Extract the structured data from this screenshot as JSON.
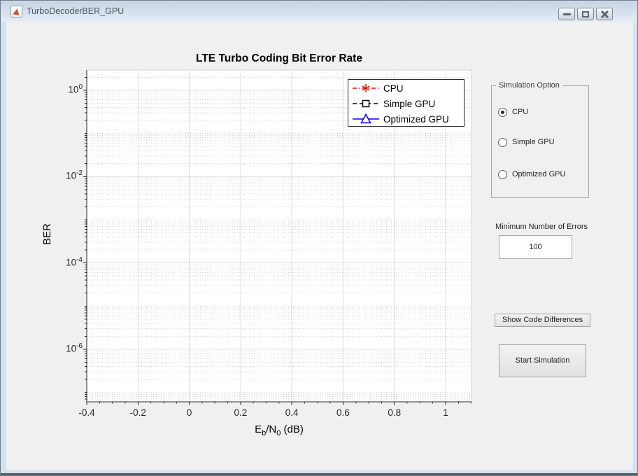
{
  "window": {
    "title": "TurboDecoderBER_GPU",
    "icon": "matlab-logo",
    "buttons": [
      "minimize",
      "maximize",
      "close"
    ]
  },
  "chart": {
    "title": "LTE Turbo Coding Bit Error Rate",
    "ylabel": "BER",
    "xlabel_segments": [
      {
        "text": "E"
      },
      {
        "text": "b",
        "sub": true
      },
      {
        "text": "/N"
      },
      {
        "text": "0",
        "sub": true
      },
      {
        "text": " (dB)"
      }
    ],
    "x_tick_labels": [
      "-0.4",
      "-0.2",
      "0",
      "0.2",
      "0.4",
      "0.6",
      "0.8",
      "1"
    ],
    "y_tick_exponents": [
      "0",
      "-2",
      "-4",
      "-6"
    ]
  },
  "chart_data": {
    "type": "line",
    "title": "LTE Turbo Coding Bit Error Rate",
    "xlabel": "E_b/N_0 (dB)",
    "ylabel": "BER",
    "x_axis": {
      "min": -0.4,
      "max": 1.1,
      "ticks": [
        -0.4,
        -0.2,
        0,
        0.2,
        0.4,
        0.6,
        0.8,
        1
      ]
    },
    "y_axis": {
      "scale": "log",
      "tick_values": [
        1,
        0.01,
        0.0001,
        1e-06
      ],
      "tick_exponents": [
        0,
        -2,
        -4,
        -6
      ],
      "max_exponent": 0.47,
      "min_exponent": -7.2
    },
    "grid": true,
    "minor_grid": true,
    "legend_position": "top-right-inside",
    "series": [
      {
        "name": "CPU",
        "color": "#FF0000",
        "line_style": "dash-dot",
        "marker": "asterisk",
        "x": [],
        "y": []
      },
      {
        "name": "Simple GPU",
        "color": "#000000",
        "line_style": "dashed",
        "marker": "square",
        "x": [],
        "y": []
      },
      {
        "name": "Optimized GPU",
        "color": "#0000FF",
        "line_style": "solid",
        "marker": "triangle",
        "x": [],
        "y": []
      }
    ],
    "note": "axes empty - no data points plotted yet"
  },
  "legend": [
    {
      "label": "CPU",
      "color": "#FF0000",
      "line_style": "dash-dot",
      "marker": "asterisk"
    },
    {
      "label": "Simple GPU",
      "color": "#000000",
      "line_style": "dashed",
      "marker": "square"
    },
    {
      "label": "Optimized GPU",
      "color": "#0000FF",
      "line_style": "solid",
      "marker": "triangle"
    }
  ],
  "sidebar": {
    "group_title": "Simulation Option",
    "options": [
      {
        "label": "CPU",
        "selected": true
      },
      {
        "label": "Simple GPU",
        "selected": false
      },
      {
        "label": "Optimized GPU",
        "selected": false
      }
    ],
    "min_errors_label": "Minimum Number of Errors",
    "min_errors_value": "100",
    "show_code_button": "Show Code Differences",
    "start_button": "Start Simulation"
  },
  "colors": {
    "series_red": "#FF0000",
    "series_blue": "#0000FF",
    "series_black": "#000000",
    "content_bg": "#F0F0F0",
    "axis_color": "#262626"
  }
}
